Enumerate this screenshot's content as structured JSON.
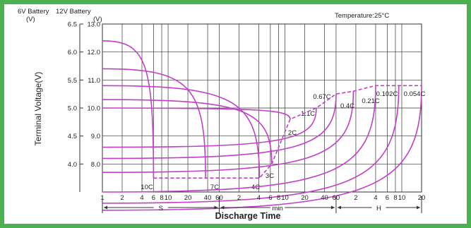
{
  "chart_data": {
    "type": "line",
    "header": {
      "left_title_6v": "6V Battery",
      "left_title_12v": "12V Battery",
      "unit_6v": "(V)",
      "unit_12v": "(V)",
      "temperature": "Temperature:25°C"
    },
    "ylabel": "Terminal Voltage(V)",
    "xlabel": "Discharge Time",
    "y_axis_6v": {
      "ticks": [
        6.5,
        6.0,
        5.5,
        5.0,
        4.5,
        4.0
      ],
      "labels": [
        "6.5",
        "6.0",
        "5.5",
        "5.0",
        "4.5",
        "4.0"
      ],
      "ylim": [
        3.5,
        6.5
      ]
    },
    "y_axis_12v": {
      "ticks": [
        13.0,
        12.0,
        11.0,
        10.0,
        9.0,
        8.0
      ],
      "labels": [
        "13.0",
        "12.0",
        "11.0",
        "10.0",
        "9.0",
        "8.0"
      ],
      "ylim": [
        7.0,
        13.0
      ]
    },
    "x_axis": {
      "scale": "log",
      "unit": "minutes",
      "ticks": [
        {
          "label": "1",
          "minutes": 0.01667
        },
        {
          "label": "2",
          "minutes": 0.03333
        },
        {
          "label": "4",
          "minutes": 0.06667
        },
        {
          "label": "6",
          "minutes": 0.1
        },
        {
          "label": "8",
          "minutes": 0.1333
        },
        {
          "label": "10",
          "minutes": 0.1667
        },
        {
          "label": "20",
          "minutes": 0.3333
        },
        {
          "label": "40",
          "minutes": 0.6667
        },
        {
          "label": "60",
          "minutes": 1
        },
        {
          "label": "2",
          "minutes": 2
        },
        {
          "label": "4",
          "minutes": 4
        },
        {
          "label": "6",
          "minutes": 6
        },
        {
          "label": "8",
          "minutes": 8
        },
        {
          "label": "10",
          "minutes": 10
        },
        {
          "label": "20",
          "minutes": 20
        },
        {
          "label": "40",
          "minutes": 40
        },
        {
          "label": "60",
          "minutes": 60
        },
        {
          "label": "2",
          "minutes": 120
        },
        {
          "label": "4",
          "minutes": 240
        },
        {
          "label": "6",
          "minutes": 360
        },
        {
          "label": "8",
          "minutes": 480
        },
        {
          "label": "10",
          "minutes": 600
        },
        {
          "label": "20",
          "minutes": 1200
        }
      ],
      "units": [
        {
          "label": "S",
          "from": 0.01667,
          "to": 1
        },
        {
          "label": "min",
          "from": 1,
          "to": 60
        },
        {
          "label": "H",
          "from": 60,
          "to": 1200
        }
      ]
    },
    "series": [
      {
        "name": "10C",
        "start_v": 12.4,
        "end_min": 0.1,
        "end_v": 7.5
      },
      {
        "name": "7C",
        "start_v": 11.4,
        "end_min": 0.62,
        "end_v": 7.5
      },
      {
        "name": "4C",
        "start_v": 10.8,
        "end_min": 4.1,
        "end_v": 7.5
      },
      {
        "name": "3C",
        "start_v": 10.3,
        "end_min": 6.3,
        "end_v": 8.0
      },
      {
        "name": "2C",
        "start_v": 10.0,
        "end_min": 12,
        "end_v": 9.6
      },
      {
        "name": "1.1C",
        "start_v": 8.6,
        "end_min": 30,
        "end_v": 10.0
      },
      {
        "name": "0.67C",
        "start_v": 8.2,
        "end_min": 60,
        "end_v": 10.5
      },
      {
        "name": "0.4C",
        "start_v": 7.7,
        "end_min": 110,
        "end_v": 10.6
      },
      {
        "name": "0.21C",
        "start_v": 7.0,
        "end_min": 240,
        "end_v": 10.8
      },
      {
        "name": "0.102C",
        "start_v": 6.6,
        "end_min": 540,
        "end_v": 10.8
      },
      {
        "name": "0.054C",
        "start_v": 6.35,
        "end_min": 1200,
        "end_v": 10.8
      }
    ],
    "cutoff_curve": {
      "style": "dashed",
      "points": [
        [
          0.1,
          7.5
        ],
        [
          0.62,
          7.5
        ],
        [
          4.1,
          7.5
        ],
        [
          6.3,
          8.0
        ],
        [
          12,
          9.6
        ],
        [
          30,
          10.0
        ],
        [
          60,
          10.5
        ],
        [
          110,
          10.6
        ],
        [
          240,
          10.8
        ],
        [
          540,
          10.8
        ],
        [
          1200,
          10.8
        ]
      ]
    },
    "colors": {
      "curve": "#c040c8",
      "grid": "#333333",
      "border": "#4caf50"
    }
  }
}
